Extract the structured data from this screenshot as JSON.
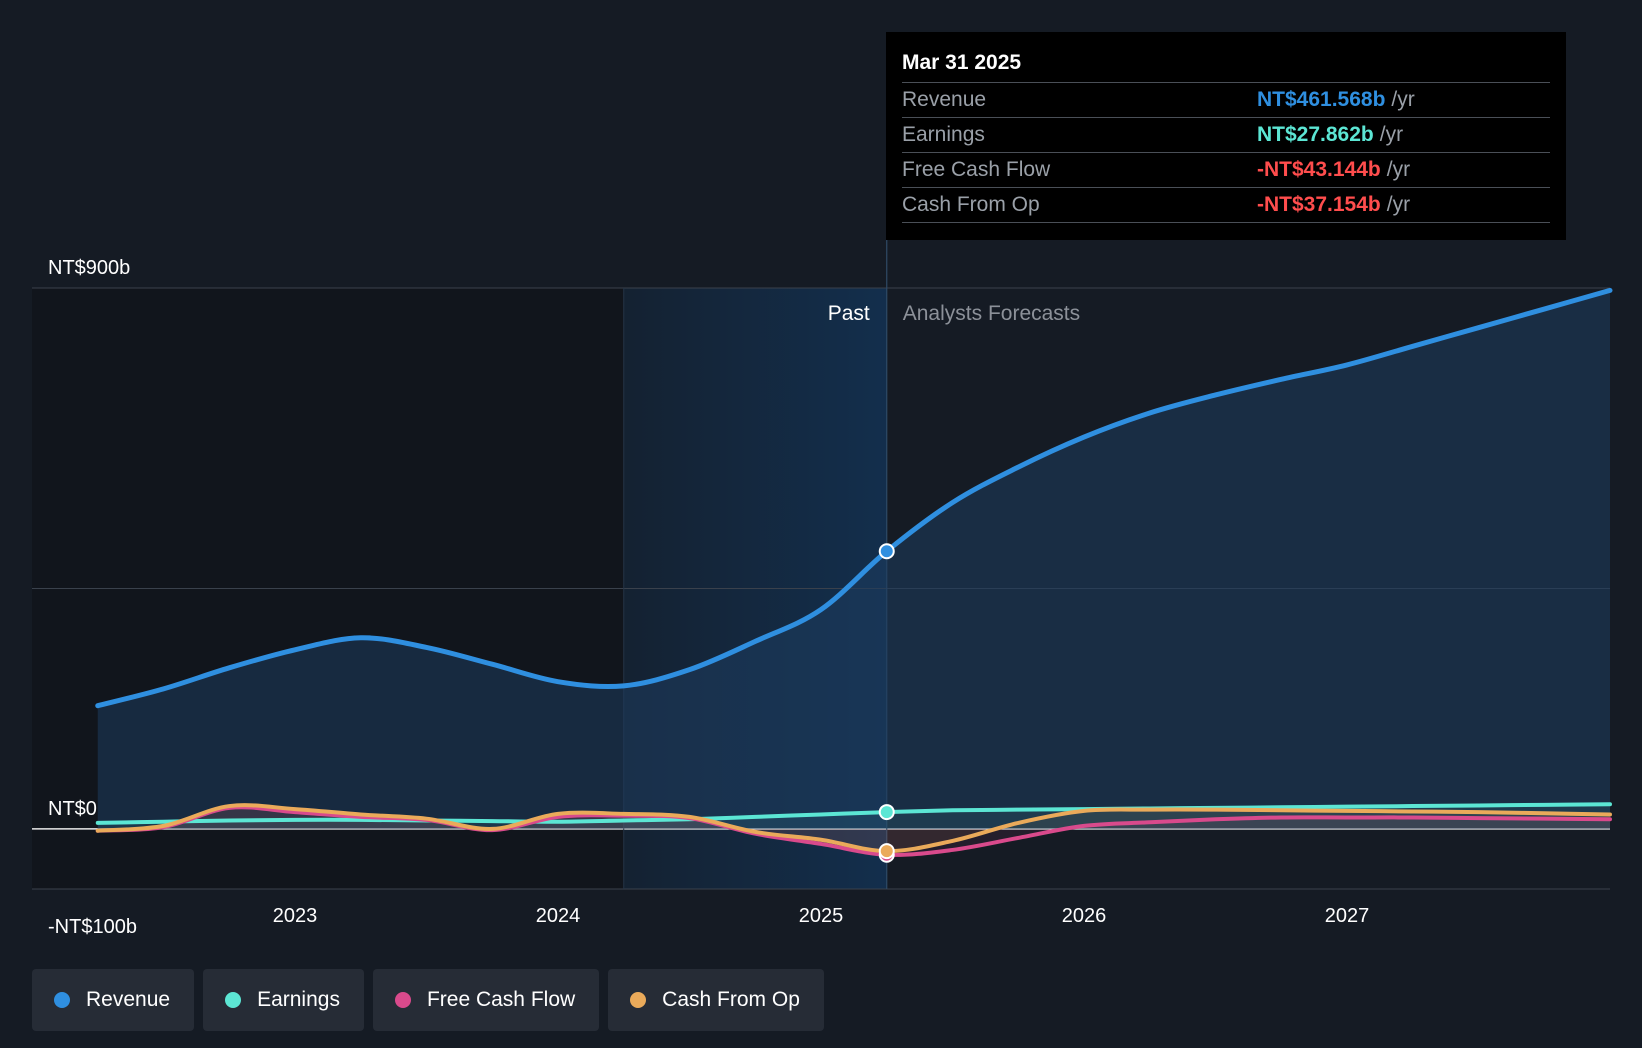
{
  "chart_data": {
    "type": "area",
    "y_ticks": [
      {
        "value": 900,
        "label": "NT$900b"
      },
      {
        "value": 0,
        "label": "NT$0"
      },
      {
        "value": -100,
        "label": "-NT$100b"
      }
    ],
    "ylim": [
      -100,
      900
    ],
    "x_ticks": [
      {
        "value": 2023,
        "label": "2023"
      },
      {
        "value": 2024,
        "label": "2024"
      },
      {
        "value": 2025,
        "label": "2025"
      },
      {
        "value": 2026,
        "label": "2026"
      },
      {
        "value": 2027,
        "label": "2027"
      }
    ],
    "xlim": [
      2022.0,
      2028.0
    ],
    "past_label": "Past",
    "forecast_label": "Analysts Forecasts",
    "divider_x": 2025.25,
    "shaded_start_x": 2024.25,
    "grid": true,
    "legend_position": "bottom-left",
    "series": [
      {
        "name": "Revenue",
        "color": "#2f8fe0",
        "fill": true,
        "points": [
          [
            2022.25,
            205
          ],
          [
            2022.5,
            233
          ],
          [
            2022.75,
            268
          ],
          [
            2023.0,
            298
          ],
          [
            2023.25,
            318
          ],
          [
            2023.5,
            302
          ],
          [
            2023.75,
            274
          ],
          [
            2024.0,
            245
          ],
          [
            2024.25,
            238
          ],
          [
            2024.5,
            265
          ],
          [
            2024.75,
            312
          ],
          [
            2025.0,
            365
          ],
          [
            2025.25,
            462
          ],
          [
            2025.5,
            543
          ],
          [
            2025.75,
            602
          ],
          [
            2026.0,
            652
          ],
          [
            2026.25,
            692
          ],
          [
            2026.5,
            722
          ],
          [
            2026.75,
            748
          ],
          [
            2027.0,
            772
          ],
          [
            2027.25,
            803
          ],
          [
            2027.5,
            834
          ],
          [
            2027.75,
            865
          ],
          [
            2028.0,
            896
          ]
        ]
      },
      {
        "name": "Earnings",
        "color": "#5ce6d4",
        "points": [
          [
            2022.25,
            10
          ],
          [
            2022.5,
            12
          ],
          [
            2022.75,
            14
          ],
          [
            2023.0,
            15
          ],
          [
            2023.25,
            15
          ],
          [
            2023.5,
            14
          ],
          [
            2023.75,
            13
          ],
          [
            2024.0,
            12
          ],
          [
            2024.25,
            14
          ],
          [
            2024.5,
            16
          ],
          [
            2024.75,
            20
          ],
          [
            2025.0,
            24
          ],
          [
            2025.25,
            28
          ],
          [
            2025.5,
            31
          ],
          [
            2025.75,
            32
          ],
          [
            2026.0,
            33
          ],
          [
            2026.25,
            34
          ],
          [
            2026.5,
            35
          ],
          [
            2026.75,
            36
          ],
          [
            2027.0,
            37
          ],
          [
            2027.25,
            38
          ],
          [
            2027.5,
            39
          ],
          [
            2027.75,
            40
          ],
          [
            2028.0,
            41
          ]
        ]
      },
      {
        "name": "Free Cash Flow",
        "color": "#d94a8c",
        "points": [
          [
            2022.25,
            -3
          ],
          [
            2022.5,
            3
          ],
          [
            2022.75,
            35
          ],
          [
            2023.0,
            28
          ],
          [
            2023.25,
            20
          ],
          [
            2023.5,
            15
          ],
          [
            2023.75,
            -2
          ],
          [
            2024.0,
            20
          ],
          [
            2024.25,
            22
          ],
          [
            2024.5,
            18
          ],
          [
            2024.75,
            -8
          ],
          [
            2025.0,
            -25
          ],
          [
            2025.25,
            -43
          ],
          [
            2025.5,
            -35
          ],
          [
            2025.75,
            -15
          ],
          [
            2026.0,
            5
          ],
          [
            2026.25,
            11
          ],
          [
            2026.5,
            16
          ],
          [
            2026.75,
            19
          ],
          [
            2027.0,
            19
          ],
          [
            2027.25,
            19
          ],
          [
            2027.5,
            18
          ],
          [
            2027.75,
            17
          ],
          [
            2028.0,
            16
          ]
        ]
      },
      {
        "name": "Cash From Op",
        "color": "#eaaa5a",
        "points": [
          [
            2022.25,
            -3
          ],
          [
            2022.5,
            5
          ],
          [
            2022.75,
            38
          ],
          [
            2023.0,
            33
          ],
          [
            2023.25,
            24
          ],
          [
            2023.5,
            17
          ],
          [
            2023.75,
            0
          ],
          [
            2024.0,
            25
          ],
          [
            2024.25,
            25
          ],
          [
            2024.5,
            20
          ],
          [
            2024.75,
            -5
          ],
          [
            2025.0,
            -18
          ],
          [
            2025.25,
            -37
          ],
          [
            2025.5,
            -20
          ],
          [
            2025.75,
            10
          ],
          [
            2026.0,
            30
          ],
          [
            2026.25,
            32
          ],
          [
            2026.5,
            32
          ],
          [
            2026.75,
            31
          ],
          [
            2027.0,
            30
          ],
          [
            2027.25,
            29
          ],
          [
            2027.5,
            28
          ],
          [
            2027.75,
            26
          ],
          [
            2028.0,
            24
          ]
        ]
      }
    ]
  },
  "tooltip": {
    "date": "Mar 31 2025",
    "rows": [
      {
        "label": "Revenue",
        "value": "NT$461.568b",
        "unit": "/yr",
        "color": "#2f8fe0"
      },
      {
        "label": "Earnings",
        "value": "NT$27.862b",
        "unit": "/yr",
        "color": "#5ce6d4"
      },
      {
        "label": "Free Cash Flow",
        "value": "-NT$43.144b",
        "unit": "/yr",
        "color": "#ff4d4d"
      },
      {
        "label": "Cash From Op",
        "value": "-NT$37.154b",
        "unit": "/yr",
        "color": "#ff4d4d"
      }
    ]
  },
  "legend": [
    {
      "label": "Revenue",
      "color": "#2f8fe0"
    },
    {
      "label": "Earnings",
      "color": "#5ce6d4"
    },
    {
      "label": "Free Cash Flow",
      "color": "#d94a8c"
    },
    {
      "label": "Cash From Op",
      "color": "#eaaa5a"
    }
  ]
}
